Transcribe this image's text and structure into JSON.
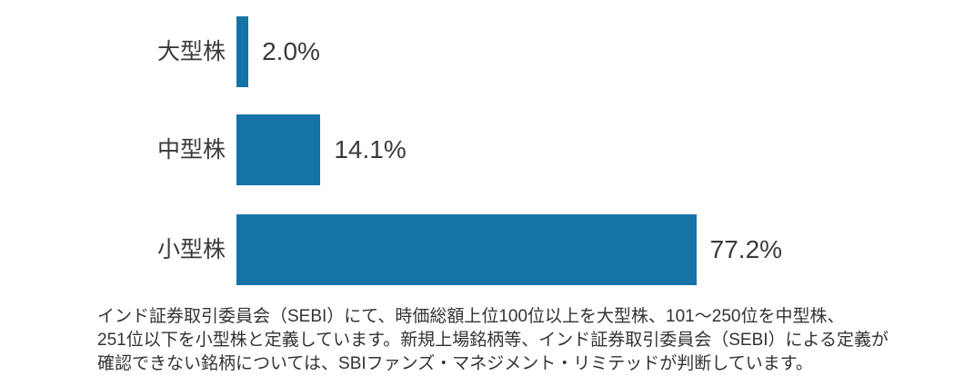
{
  "colors": {
    "bar": "#1573A5",
    "label_text": "#3A3A3A",
    "footnote_text": "#333333",
    "background": "#FFFFFF"
  },
  "chart_data": {
    "type": "bar",
    "orientation": "horizontal",
    "title": "",
    "xlabel": "",
    "ylabel": "",
    "xlim": [
      0,
      100
    ],
    "grid": false,
    "legend": false,
    "categories": [
      "大型株",
      "中型株",
      "小型株"
    ],
    "values": [
      2.0,
      14.1,
      77.2
    ],
    "value_labels": [
      "2.0%",
      "14.1%",
      "77.2%"
    ]
  },
  "footnote": {
    "lines": [
      "インド証券取引委員会（SEBI）にて、時価総額上位100位以上を大型株、101～250位を中型株、",
      "251位以下を小型株と定義しています。新規上場銘柄等、インド証券取引委員会（SEBI）による定義が",
      "確認できない銘柄については、SBIファンズ・マネジメント・リミテッドが判断しています。"
    ]
  }
}
